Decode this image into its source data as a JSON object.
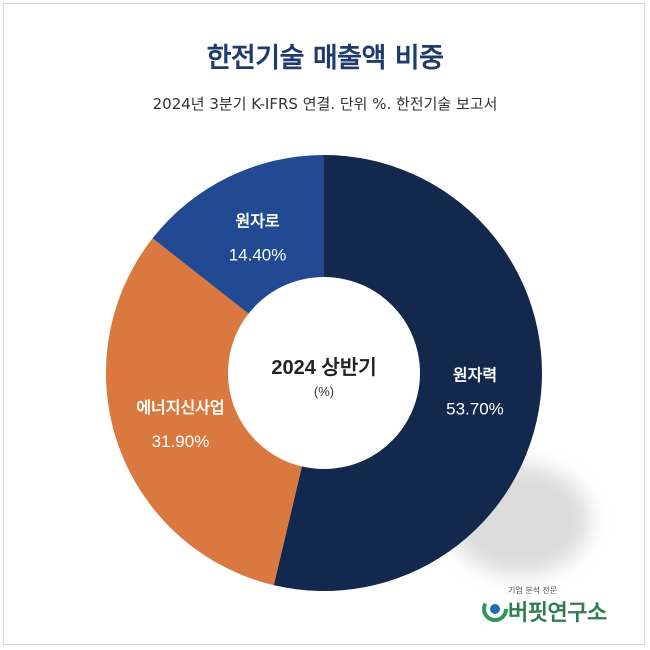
{
  "title": "한전기술 매출액 비중",
  "subtitle": "2024년 3분기 K-IFRS 연결. 단위 %. 한전기술 보고서",
  "center": {
    "line1": "2024 상반기",
    "line2": "(%)"
  },
  "logo": {
    "tagline": "기업 분석 전문",
    "name": "버핏연구소"
  },
  "colors": {
    "원자력": "#13284d",
    "에너지신사업": "#d9793f",
    "원자로": "#224a92"
  },
  "chart_data": {
    "type": "pie",
    "donut": true,
    "title": "한전기술 매출액 비중",
    "subtitle": "2024년 3분기 K-IFRS 연결. 단위 %. 한전기술 보고서",
    "categories": [
      "원자력",
      "에너지신사업",
      "원자로"
    ],
    "values": [
      53.7,
      31.9,
      14.4
    ],
    "value_labels": [
      "53.70%",
      "31.90%",
      "14.40%"
    ]
  }
}
